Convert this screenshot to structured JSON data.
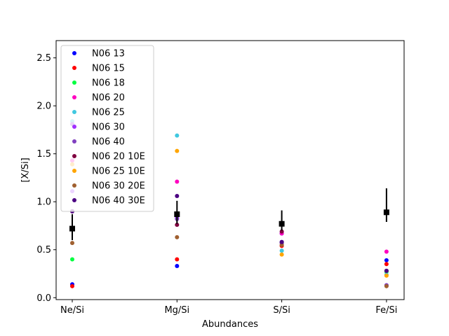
{
  "chart_data": {
    "type": "scatter",
    "title": "",
    "xlabel": "Abundances",
    "ylabel": "[X/Si]",
    "categories": [
      "Ne/Si",
      "Mg/Si",
      "S/Si",
      "Fe/Si"
    ],
    "ylim": [
      -0.02,
      2.68
    ],
    "yticks": [
      0.0,
      0.5,
      1.0,
      1.5,
      2.0,
      2.5
    ],
    "ytick_labels": [
      "0.0",
      "0.5",
      "1.0",
      "1.5",
      "2.0",
      "2.5"
    ],
    "grid": false,
    "legend_position": "upper-left",
    "series": [
      {
        "name": "N06 13",
        "color": "#0000ff",
        "values": [
          0.14,
          0.33,
          0.67,
          0.39
        ]
      },
      {
        "name": "N06 15",
        "color": "#ff0000",
        "values": [
          0.12,
          0.4,
          0.54,
          0.35
        ]
      },
      {
        "name": "N06 18",
        "color": "#00ff40",
        "values": [
          0.4,
          0.85,
          0.58,
          0.27
        ]
      },
      {
        "name": "N06 20",
        "color": "#ff00c0",
        "values": [
          1.43,
          1.21,
          0.67,
          0.48
        ]
      },
      {
        "name": "N06 25",
        "color": "#40c8e0",
        "values": [
          1.84,
          1.69,
          0.49,
          0.24
        ]
      },
      {
        "name": "N06 30",
        "color": "#a030ff",
        "values": [
          1.11,
          0.83,
          0.58,
          0.13
        ]
      },
      {
        "name": "N06 40",
        "color": "#8040c0",
        "values": [
          1.81,
          0.82,
          0.57,
          0.13
        ]
      },
      {
        "name": "N06 20 10E",
        "color": "#800040",
        "values": [
          0.9,
          0.76,
          0.69,
          0.28
        ]
      },
      {
        "name": "N06 25 10E",
        "color": "#ffa500",
        "values": [
          1.39,
          1.53,
          0.45,
          0.23
        ]
      },
      {
        "name": "N06 30 20E",
        "color": "#a06030",
        "values": [
          0.57,
          0.63,
          0.55,
          0.12
        ]
      },
      {
        "name": "N06 40 30E",
        "color": "#4b0082",
        "values": [
          0.9,
          1.06,
          0.58,
          0.28
        ]
      }
    ],
    "observed": {
      "color": "#000000",
      "values": [
        0.72,
        0.87,
        0.77,
        0.89
      ],
      "err_low": [
        0.12,
        0.1,
        0.07,
        0.1
      ],
      "err_high": [
        0.15,
        0.14,
        0.14,
        0.25
      ]
    }
  }
}
